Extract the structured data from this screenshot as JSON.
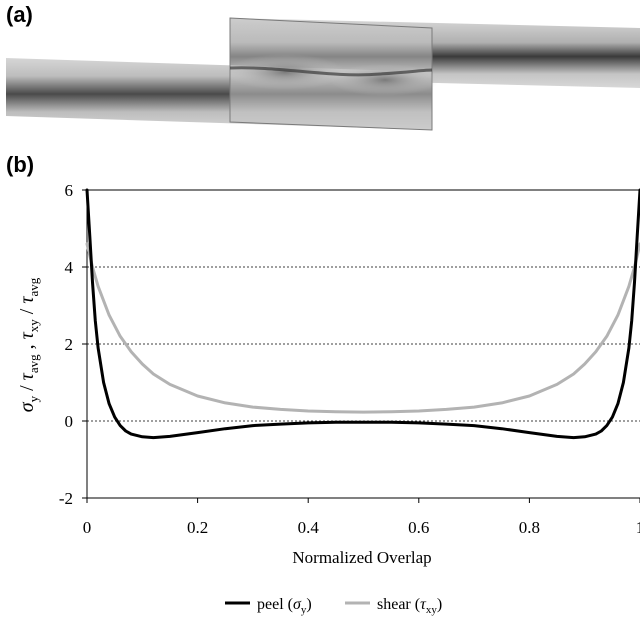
{
  "panels": {
    "a": "(a)",
    "b": "(b)"
  },
  "chart_data": {
    "type": "line",
    "xlabel": "Normalized Overlap",
    "ylabel": "σy / τavg , τxy / τavg",
    "xlim": [
      0,
      1
    ],
    "ylim": [
      -2,
      6
    ],
    "xticks": [
      "0",
      "0.2",
      "0.4",
      "0.6",
      "0.8",
      "1"
    ],
    "yticks": [
      "-2",
      "0",
      "2",
      "4",
      "6"
    ],
    "grid": "dashed horizontal at 0, 2, 4, 6",
    "legend_position": "bottom-center",
    "series": [
      {
        "name": "peel (σy)",
        "color": "#000000",
        "x": [
          0,
          0.005,
          0.01,
          0.015,
          0.02,
          0.03,
          0.04,
          0.05,
          0.06,
          0.07,
          0.08,
          0.1,
          0.12,
          0.15,
          0.2,
          0.25,
          0.3,
          0.35,
          0.4,
          0.45,
          0.5,
          0.55,
          0.6,
          0.65,
          0.7,
          0.75,
          0.8,
          0.85,
          0.88,
          0.9,
          0.92,
          0.93,
          0.94,
          0.95,
          0.96,
          0.97,
          0.98,
          0.985,
          0.99,
          0.995,
          1
        ],
        "y": [
          6,
          4.8,
          3.6,
          2.6,
          1.9,
          1.0,
          0.45,
          0.1,
          -0.12,
          -0.26,
          -0.34,
          -0.41,
          -0.43,
          -0.4,
          -0.3,
          -0.2,
          -0.12,
          -0.08,
          -0.05,
          -0.03,
          -0.03,
          -0.03,
          -0.05,
          -0.08,
          -0.12,
          -0.2,
          -0.3,
          -0.4,
          -0.43,
          -0.41,
          -0.34,
          -0.26,
          -0.12,
          0.1,
          0.45,
          1.0,
          1.9,
          2.6,
          3.6,
          4.8,
          6
        ]
      },
      {
        "name": "shear (τxy)",
        "color": "#b3b3b3",
        "x": [
          0,
          0.01,
          0.02,
          0.04,
          0.06,
          0.08,
          0.1,
          0.12,
          0.15,
          0.2,
          0.25,
          0.3,
          0.35,
          0.4,
          0.45,
          0.5,
          0.55,
          0.6,
          0.65,
          0.7,
          0.75,
          0.8,
          0.85,
          0.88,
          0.9,
          0.92,
          0.94,
          0.96,
          0.98,
          0.99,
          1
        ],
        "y": [
          4.6,
          4.0,
          3.5,
          2.75,
          2.2,
          1.8,
          1.48,
          1.22,
          0.95,
          0.65,
          0.47,
          0.36,
          0.3,
          0.26,
          0.24,
          0.23,
          0.24,
          0.26,
          0.3,
          0.36,
          0.47,
          0.65,
          0.95,
          1.22,
          1.48,
          1.8,
          2.2,
          2.75,
          3.5,
          4.0,
          4.6
        ]
      }
    ]
  }
}
